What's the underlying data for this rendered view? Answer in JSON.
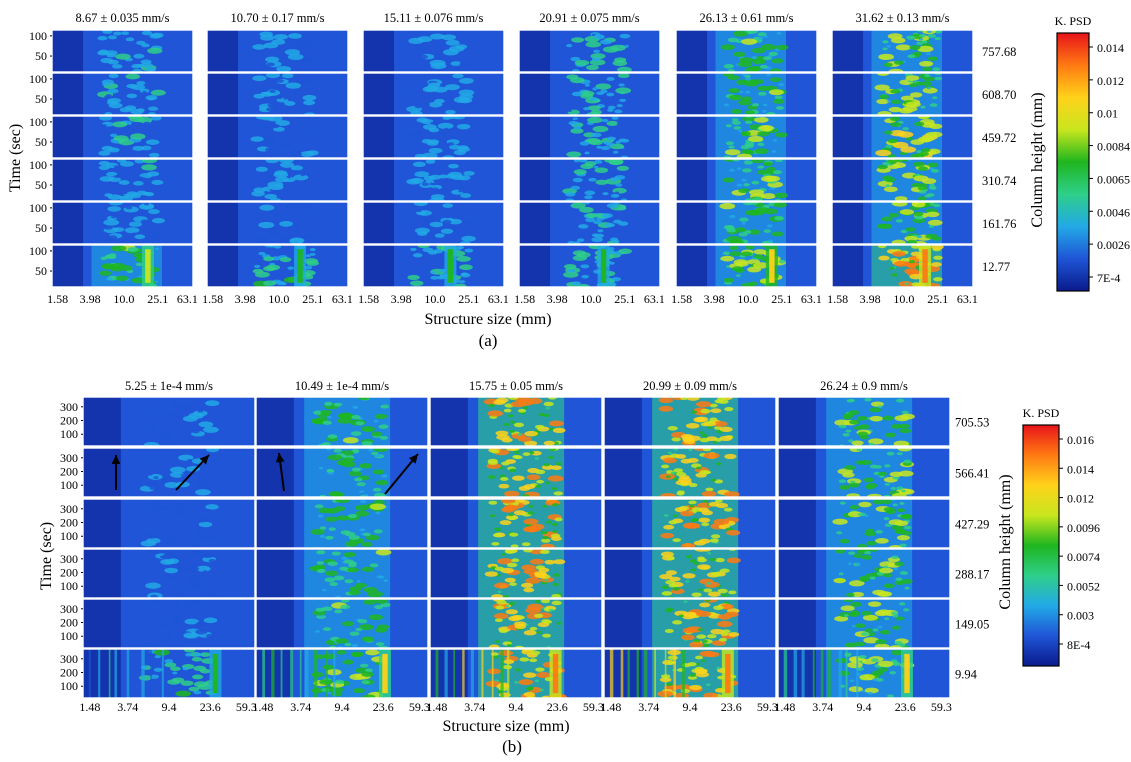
{
  "chart_data": [
    {
      "type": "heatmap",
      "panel": "(a)",
      "column_titles": [
        "8.67 ± 0.035 mm/s",
        "10.70 ± 0.17 mm/s",
        "15.11 ± 0.076 mm/s",
        "20.91 ± 0.075 mm/s",
        "26.13 ± 0.61 mm/s",
        "31.62 ± 0.13 mm/s"
      ],
      "row_labels": [
        "757.68",
        "608.70",
        "459.72",
        "310.74",
        "161.76",
        "12.77"
      ],
      "row_axis_label": "Column height (mm)",
      "xlabel": "Structure size (mm)",
      "ylabel": "Time (sec)",
      "x_ticks": [
        "1.58",
        "3.98",
        "10.0",
        "25.1",
        "63.1"
      ],
      "y_ticks": [
        "100",
        "50"
      ],
      "colorbar": {
        "title": "K. PSD",
        "ticks": [
          "0.014",
          "0.012",
          "0.01",
          "0.0084",
          "0.0065",
          "0.0046",
          "0.0026",
          "7E-4"
        ]
      },
      "colormap": [
        "#0a1a8c",
        "#1f55d6",
        "#22a9e6",
        "#2ecf8a",
        "#1fb61f",
        "#c8e61e",
        "#ffd21a",
        "#ff7a12",
        "#e8141a"
      ],
      "intensity": [
        [
          0.35,
          0.25,
          0.28,
          0.4,
          0.55,
          0.62
        ],
        [
          0.35,
          0.28,
          0.3,
          0.42,
          0.58,
          0.65
        ],
        [
          0.35,
          0.28,
          0.32,
          0.42,
          0.58,
          0.68
        ],
        [
          0.35,
          0.28,
          0.32,
          0.42,
          0.58,
          0.65
        ],
        [
          0.3,
          0.25,
          0.3,
          0.4,
          0.55,
          0.62
        ],
        [
          0.55,
          0.45,
          0.4,
          0.42,
          0.65,
          0.85
        ]
      ]
    },
    {
      "type": "heatmap",
      "panel": "(b)",
      "column_titles": [
        "5.25 ± 1e-4 mm/s",
        "10.49 ± 1e-4 mm/s",
        "15.75 ± 0.05 mm/s",
        "20.99 ± 0.09 mm/s",
        "26.24 ± 0.9 mm/s"
      ],
      "row_labels": [
        "705.53",
        "566.41",
        "427.29",
        "288.17",
        "149.05",
        "9.94"
      ],
      "row_axis_label": "Column height (mm)",
      "xlabel": "Structure size (mm)",
      "ylabel": "Time (sec)",
      "x_ticks": [
        "1.48",
        "3.74",
        "9.4",
        "23.6",
        "59.3"
      ],
      "y_ticks": [
        "300",
        "200",
        "100"
      ],
      "colorbar": {
        "title": "K. PSD",
        "ticks": [
          "0.016",
          "0.014",
          "0.012",
          "0.0096",
          "0.0074",
          "0.0052",
          "0.003",
          "8E-4"
        ]
      },
      "colormap": [
        "#0a1a8c",
        "#1f55d6",
        "#22a9e6",
        "#2ecf8a",
        "#1fb61f",
        "#c8e61e",
        "#ffd21a",
        "#ff7a12",
        "#e8141a"
      ],
      "intensity": [
        [
          0.25,
          0.55,
          0.85,
          0.85,
          0.65
        ],
        [
          0.25,
          0.55,
          0.85,
          0.85,
          0.65
        ],
        [
          0.25,
          0.55,
          0.85,
          0.85,
          0.65
        ],
        [
          0.25,
          0.55,
          0.85,
          0.85,
          0.65
        ],
        [
          0.25,
          0.55,
          0.85,
          0.85,
          0.65
        ],
        [
          0.45,
          0.6,
          0.85,
          0.85,
          0.6
        ]
      ],
      "annotations": [
        "arrow",
        "arrow",
        "arrow",
        "arrow"
      ]
    }
  ]
}
